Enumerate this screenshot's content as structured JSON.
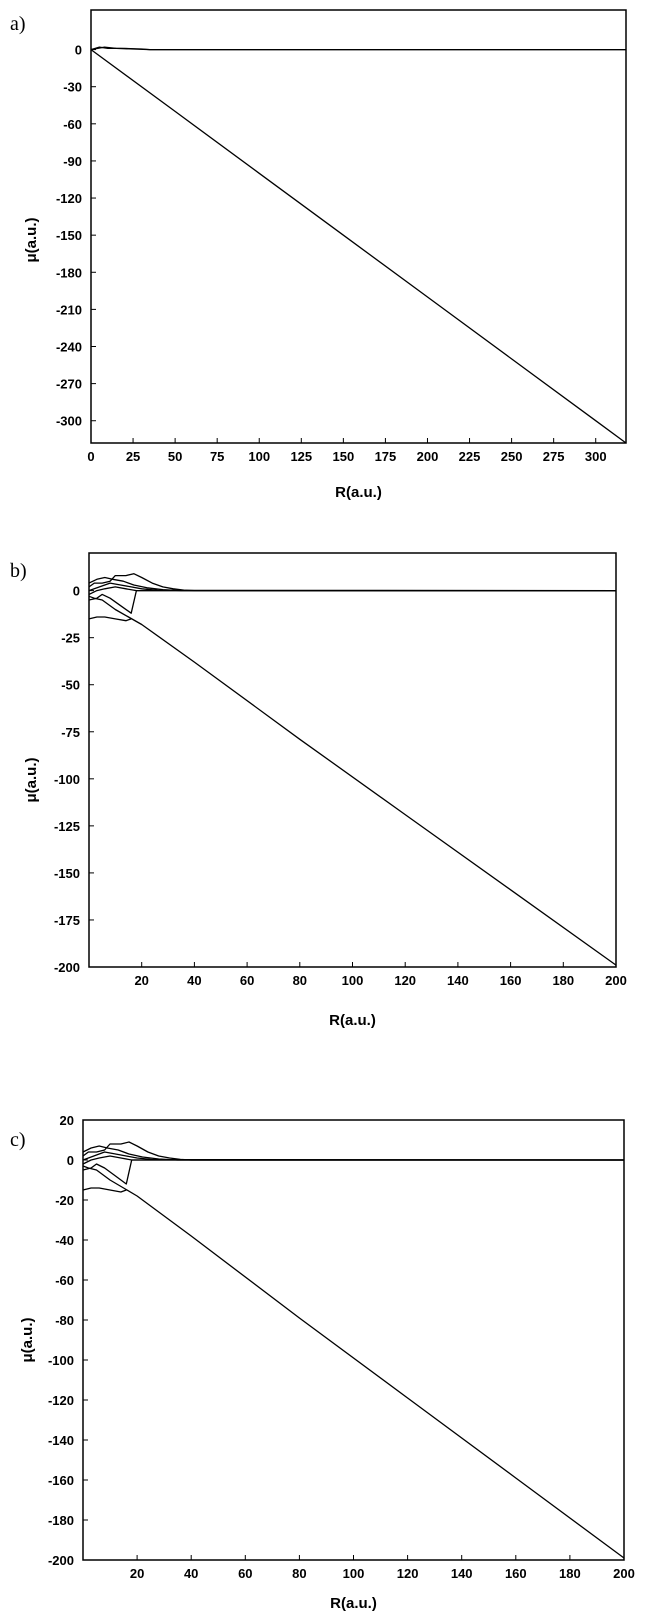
{
  "chart_data": [
    {
      "type": "line",
      "panel_label": "a)",
      "xlabel": "R(a.u.)",
      "ylabel": "μ(a.u.)",
      "xlim": [
        0,
        318
      ],
      "ylim": [
        -318,
        32
      ],
      "xticks": [
        0,
        25,
        50,
        75,
        100,
        125,
        150,
        175,
        200,
        225,
        250,
        275,
        300
      ],
      "yticks": [
        0,
        -30,
        -60,
        -90,
        -120,
        -150,
        -180,
        -210,
        -240,
        -270,
        -300
      ],
      "grid": false,
      "series": [
        {
          "x": [
            0,
            5,
            10,
            20,
            30,
            35,
            50,
            100,
            200,
            318
          ],
          "y": [
            0,
            2,
            1,
            1,
            0.5,
            0,
            0,
            0,
            0,
            0
          ]
        },
        {
          "x": [
            0,
            4,
            8,
            15,
            25,
            35,
            318
          ],
          "y": [
            0,
            1,
            2,
            1,
            0.5,
            0,
            0
          ]
        },
        {
          "x": [
            0,
            50,
            100,
            150,
            200,
            250,
            300,
            318
          ],
          "y": [
            0,
            -50,
            -100,
            -150,
            -200,
            -250,
            -300,
            -318
          ]
        }
      ]
    },
    {
      "type": "line",
      "panel_label": "b)",
      "xlabel": "R(a.u.)",
      "ylabel": "μ(a.u.)",
      "xlim": [
        0,
        200
      ],
      "ylim": [
        -200,
        20
      ],
      "xticks": [
        20,
        40,
        60,
        80,
        100,
        120,
        140,
        160,
        180,
        200
      ],
      "yticks": [
        0,
        -25,
        -50,
        -75,
        -100,
        -125,
        -150,
        -175,
        -200
      ],
      "grid": false,
      "series": [
        {
          "x": [
            0,
            2,
            5,
            8,
            10,
            14,
            17,
            20,
            24,
            28,
            32,
            36,
            40,
            200
          ],
          "y": [
            2,
            4,
            4,
            5,
            8,
            8,
            9,
            7,
            4,
            2,
            1,
            0.3,
            0,
            0
          ]
        },
        {
          "x": [
            0,
            3,
            6,
            9,
            13,
            17,
            22,
            28,
            35,
            200
          ],
          "y": [
            4,
            6,
            7,
            6,
            5,
            3,
            1.5,
            0.5,
            0,
            0
          ]
        },
        {
          "x": [
            0,
            4,
            8,
            12,
            16,
            20,
            26,
            200
          ],
          "y": [
            0,
            2,
            4,
            3,
            2,
            1,
            0.2,
            0
          ]
        },
        {
          "x": [
            0,
            3,
            6,
            10,
            14,
            18,
            200
          ],
          "y": [
            -2,
            0,
            1,
            2,
            1,
            0,
            0
          ]
        },
        {
          "x": [
            0,
            3,
            5,
            8,
            12,
            16,
            18,
            200
          ],
          "y": [
            -5,
            -4,
            -2,
            -4,
            -8,
            -12,
            0,
            0
          ]
        },
        {
          "x": [
            0,
            3,
            6,
            10,
            14,
            16
          ],
          "y": [
            -15,
            -14,
            -14,
            -15,
            -16,
            -15
          ]
        },
        {
          "x": [
            0,
            2,
            5,
            10,
            15,
            20,
            40,
            80,
            120,
            160,
            200
          ],
          "y": [
            -3,
            -4,
            -5,
            -10,
            -14,
            -18,
            -38,
            -79,
            -119,
            -159,
            -199
          ]
        }
      ]
    },
    {
      "type": "line",
      "panel_label": "c)",
      "xlabel": "R(a.u.)",
      "ylabel": "μ(a.u.)",
      "xlim": [
        0,
        200
      ],
      "ylim": [
        -200,
        20
      ],
      "xticks": [
        20,
        40,
        60,
        80,
        100,
        120,
        140,
        160,
        180,
        200
      ],
      "yticks": [
        20,
        0,
        -20,
        -40,
        -60,
        -80,
        -100,
        -120,
        -140,
        -160,
        -180,
        -200
      ],
      "grid": false,
      "series": [
        {
          "x": [
            0,
            2,
            5,
            8,
            10,
            14,
            17,
            20,
            24,
            28,
            32,
            36,
            40,
            200
          ],
          "y": [
            2,
            4,
            4,
            5,
            8,
            8,
            9,
            7,
            4,
            2,
            1,
            0.3,
            0,
            0
          ]
        },
        {
          "x": [
            0,
            3,
            6,
            9,
            13,
            17,
            22,
            28,
            35,
            200
          ],
          "y": [
            4,
            6,
            7,
            6,
            5,
            3,
            1.5,
            0.5,
            0,
            0
          ]
        },
        {
          "x": [
            0,
            4,
            8,
            12,
            16,
            20,
            26,
            200
          ],
          "y": [
            0,
            2,
            4,
            3,
            2,
            1,
            0.2,
            0
          ]
        },
        {
          "x": [
            0,
            3,
            6,
            10,
            14,
            18,
            200
          ],
          "y": [
            -2,
            0,
            1,
            2,
            1,
            0,
            0
          ]
        },
        {
          "x": [
            0,
            3,
            5,
            8,
            12,
            16,
            18,
            200
          ],
          "y": [
            -5,
            -4,
            -2,
            -4,
            -8,
            -12,
            0,
            0
          ]
        },
        {
          "x": [
            0,
            3,
            6,
            10,
            14,
            16
          ],
          "y": [
            -15,
            -14,
            -14,
            -15,
            -16,
            -15
          ]
        },
        {
          "x": [
            0,
            2,
            5,
            10,
            15,
            20,
            40,
            80,
            120,
            160,
            200
          ],
          "y": [
            -3,
            -4,
            -5,
            -10,
            -14,
            -18,
            -38,
            -79,
            -119,
            -159,
            -199
          ]
        }
      ]
    }
  ]
}
